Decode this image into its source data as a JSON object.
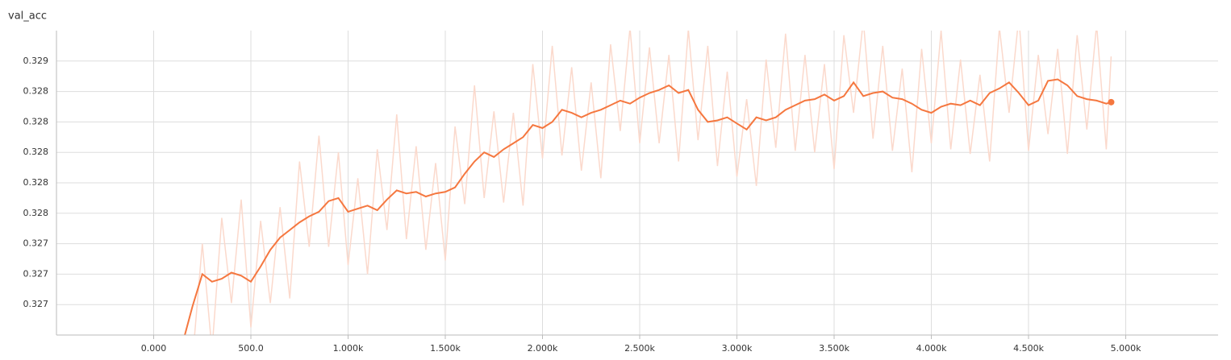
{
  "chart_data": {
    "type": "line",
    "title": "val_acc",
    "x": [
      160,
      200,
      250,
      300,
      350,
      400,
      450,
      500,
      550,
      600,
      650,
      700,
      750,
      800,
      850,
      900,
      950,
      1000,
      1050,
      1100,
      1150,
      1200,
      1250,
      1300,
      1350,
      1400,
      1450,
      1500,
      1550,
      1600,
      1650,
      1700,
      1750,
      1800,
      1850,
      1900,
      1950,
      2000,
      2050,
      2100,
      2150,
      2200,
      2250,
      2300,
      2350,
      2400,
      2450,
      2500,
      2550,
      2600,
      2650,
      2700,
      2750,
      2800,
      2850,
      2900,
      2950,
      3000,
      3050,
      3100,
      3150,
      3200,
      3250,
      3300,
      3350,
      3400,
      3450,
      3500,
      3550,
      3600,
      3650,
      3700,
      3750,
      3800,
      3850,
      3900,
      3950,
      4000,
      4050,
      4100,
      4150,
      4200,
      4250,
      4300,
      4350,
      4400,
      4450,
      4500,
      4550,
      4600,
      4650,
      4700,
      4750,
      4800,
      4850,
      4900,
      4925
    ],
    "series": [
      {
        "color": "#fbd9cc",
        "values": [
          0.32675,
          0.32664,
          0.3274,
          0.3267,
          0.32757,
          0.32701,
          0.32769,
          0.32685,
          0.32755,
          0.32701,
          0.32764,
          0.32704,
          0.32794,
          0.32738,
          0.32811,
          0.32738,
          0.328,
          0.32726,
          0.32783,
          0.3272,
          0.32802,
          0.32749,
          0.32825,
          0.32743,
          0.32804,
          0.32736,
          0.32793,
          0.32729,
          0.32817,
          0.32766,
          0.32844,
          0.3277,
          0.32827,
          0.32767,
          0.32826,
          0.32765,
          0.32858,
          0.32796,
          0.3287,
          0.32798,
          0.32856,
          0.32788,
          0.32846,
          0.32783,
          0.32871,
          0.32814,
          0.32882,
          0.32806,
          0.32869,
          0.32806,
          0.32864,
          0.32794,
          0.32881,
          0.32808,
          0.3287,
          0.32791,
          0.32853,
          0.32784,
          0.32835,
          0.32778,
          0.32861,
          0.32803,
          0.32878,
          0.32801,
          0.32864,
          0.328,
          0.32858,
          0.32789,
          0.32877,
          0.32826,
          0.32887,
          0.32809,
          0.3287,
          0.32801,
          0.32855,
          0.32787,
          0.32868,
          0.32806,
          0.3288,
          0.32802,
          0.32861,
          0.32799,
          0.32851,
          0.32794,
          0.32882,
          0.32826,
          0.32889,
          0.32801,
          0.32864,
          0.32812,
          0.32868,
          0.32799,
          0.32877,
          0.32815,
          0.32884,
          0.32802,
          0.32863
        ]
      },
      {
        "color": "#f5773f",
        "values": [
          0.3268,
          0.32699,
          0.3272,
          0.32715,
          0.32717,
          0.32721,
          0.32719,
          0.32715,
          0.32725,
          0.32736,
          0.32744,
          0.32749,
          0.32754,
          0.32758,
          0.32761,
          0.32768,
          0.3277,
          0.32761,
          0.32763,
          0.32765,
          0.32762,
          0.32769,
          0.32775,
          0.32773,
          0.32774,
          0.32771,
          0.32773,
          0.32774,
          0.32777,
          0.32786,
          0.32794,
          0.328,
          0.32797,
          0.32802,
          0.32806,
          0.3281,
          0.32818,
          0.32816,
          0.3282,
          0.32828,
          0.32826,
          0.32823,
          0.32826,
          0.32828,
          0.32831,
          0.32834,
          0.32832,
          0.32836,
          0.32839,
          0.32841,
          0.32844,
          0.32839,
          0.32841,
          0.32828,
          0.3282,
          0.32821,
          0.32823,
          0.32819,
          0.32815,
          0.32823,
          0.32821,
          0.32823,
          0.32828,
          0.32831,
          0.32834,
          0.32835,
          0.32838,
          0.32834,
          0.32837,
          0.32846,
          0.32837,
          0.32839,
          0.3284,
          0.32836,
          0.32835,
          0.32832,
          0.32828,
          0.32826,
          0.3283,
          0.32832,
          0.32831,
          0.32834,
          0.32831,
          0.32839,
          0.32842,
          0.32846,
          0.32839,
          0.32831,
          0.32834,
          0.32847,
          0.32848,
          0.32844,
          0.32837,
          0.32835,
          0.32834,
          0.32832,
          0.32833
        ]
      }
    ],
    "xlim": [
      -500,
      5475
    ],
    "xticks": [
      {
        "value": 0,
        "label": "0.000"
      },
      {
        "value": 500,
        "label": "500.0"
      },
      {
        "value": 1000,
        "label": "1.000k"
      },
      {
        "value": 1500,
        "label": "1.500k"
      },
      {
        "value": 2000,
        "label": "2.000k"
      },
      {
        "value": 2500,
        "label": "2.500k"
      },
      {
        "value": 3000,
        "label": "3.000k"
      },
      {
        "value": 3500,
        "label": "3.500k"
      },
      {
        "value": 4000,
        "label": "4.000k"
      },
      {
        "value": 4500,
        "label": "4.500k"
      },
      {
        "value": 5000,
        "label": "5.000k"
      }
    ],
    "ylim": [
      0.3268,
      0.3288
    ],
    "yticks": [
      {
        "value": 0.327,
        "label": "0.327"
      },
      {
        "value": 0.3272,
        "label": "0.327"
      },
      {
        "value": 0.3274,
        "label": "0.327"
      },
      {
        "value": 0.3276,
        "label": "0.328"
      },
      {
        "value": 0.3278,
        "label": "0.328"
      },
      {
        "value": 0.328,
        "label": "0.328"
      },
      {
        "value": 0.3282,
        "label": "0.328"
      },
      {
        "value": 0.3284,
        "label": "0.328"
      },
      {
        "value": 0.3286,
        "label": "0.329"
      }
    ],
    "grid": true
  }
}
